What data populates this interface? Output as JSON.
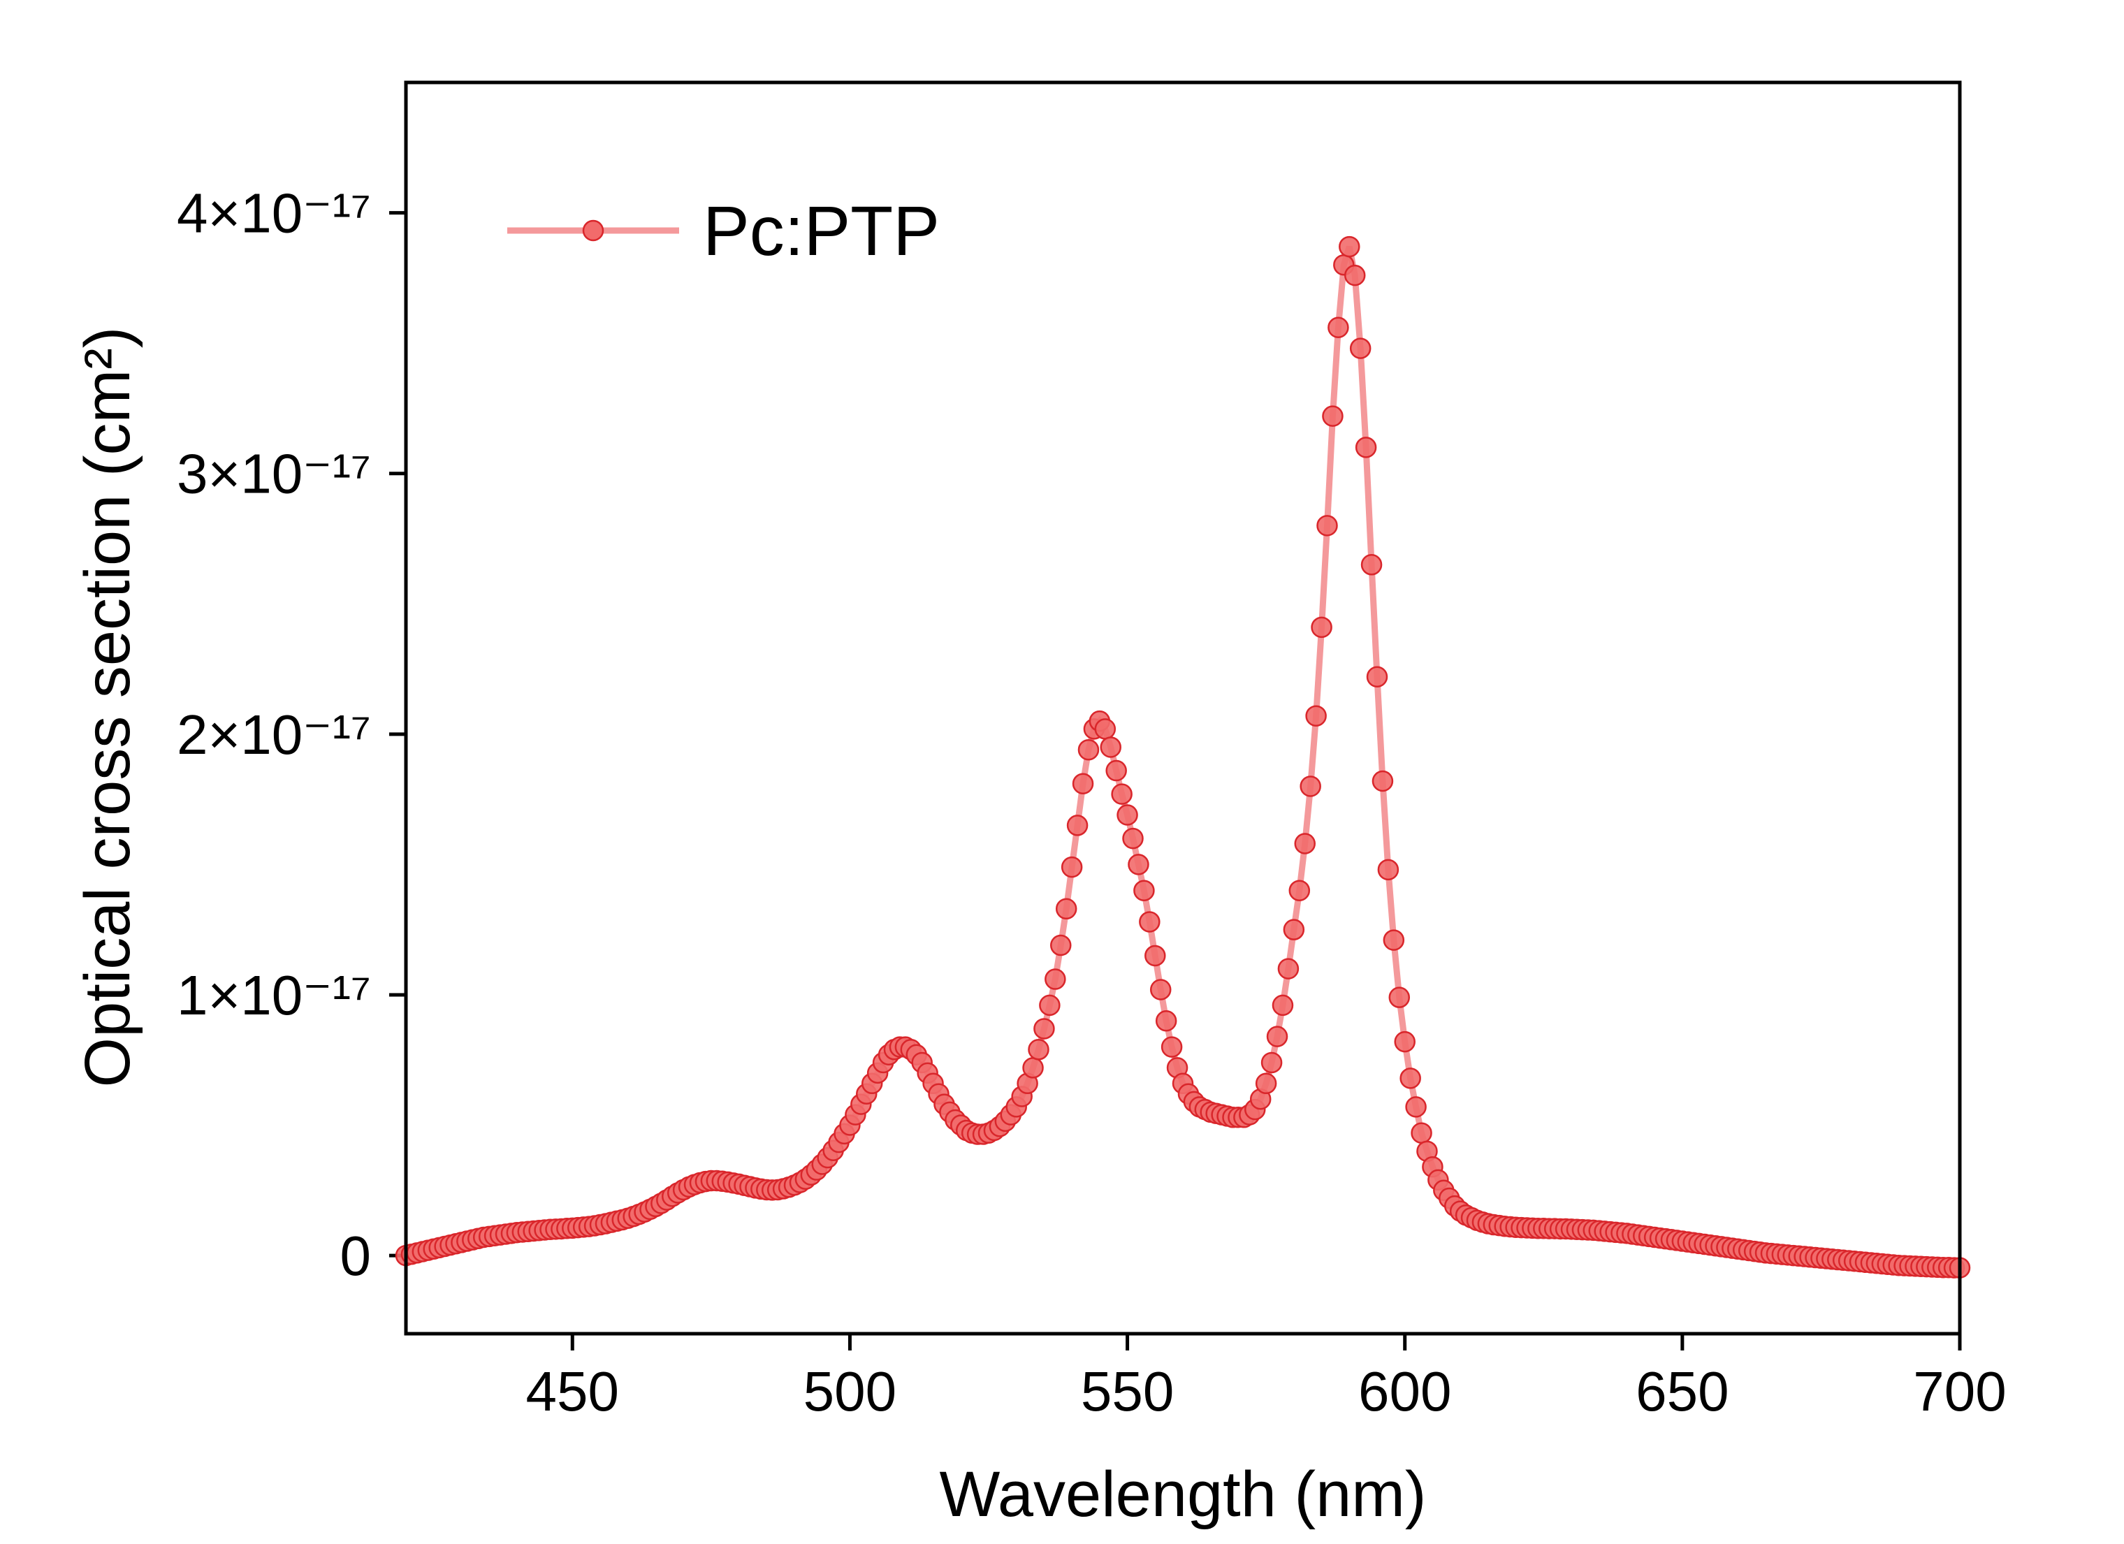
{
  "chart_data": {
    "type": "line",
    "xlabel": "Wavelength (nm)",
    "ylabel": "Optical cross section (cm²)",
    "xlim": [
      420,
      700
    ],
    "xticks": [
      450,
      500,
      550,
      600,
      650,
      700
    ],
    "ylim": [
      -3e-18,
      4.5e-17
    ],
    "yticks": [
      0,
      {
        "value": 1e-17,
        "label": "1×10⁻¹⁷"
      },
      {
        "value": 2e-17,
        "label": "2×10⁻¹⁷"
      },
      {
        "value": 3e-17,
        "label": "3×10⁻¹⁷"
      },
      {
        "value": 4e-17,
        "label": "4×10⁻¹⁷"
      }
    ],
    "legend": "upper left",
    "x": [
      420,
      421,
      422,
      423,
      424,
      425,
      426,
      427,
      428,
      429,
      430,
      431,
      432,
      433,
      434,
      435,
      436,
      437,
      438,
      439,
      440,
      441,
      442,
      443,
      444,
      445,
      446,
      447,
      448,
      449,
      450,
      451,
      452,
      453,
      454,
      455,
      456,
      457,
      458,
      459,
      460,
      461,
      462,
      463,
      464,
      465,
      466,
      467,
      468,
      469,
      470,
      471,
      472,
      473,
      474,
      475,
      476,
      477,
      478,
      479,
      480,
      481,
      482,
      483,
      484,
      485,
      486,
      487,
      488,
      489,
      490,
      491,
      492,
      493,
      494,
      495,
      496,
      497,
      498,
      499,
      500,
      501,
      502,
      503,
      504,
      505,
      506,
      507,
      508,
      509,
      510,
      511,
      512,
      513,
      514,
      515,
      516,
      517,
      518,
      519,
      520,
      521,
      522,
      523,
      524,
      525,
      526,
      527,
      528,
      529,
      530,
      531,
      532,
      533,
      534,
      535,
      536,
      537,
      538,
      539,
      540,
      541,
      542,
      543,
      544,
      545,
      546,
      547,
      548,
      549,
      550,
      551,
      552,
      553,
      554,
      555,
      556,
      557,
      558,
      559,
      560,
      561,
      562,
      563,
      564,
      565,
      566,
      567,
      568,
      569,
      570,
      571,
      572,
      573,
      574,
      575,
      576,
      577,
      578,
      579,
      580,
      581,
      582,
      583,
      584,
      585,
      586,
      587,
      588,
      589,
      590,
      591,
      592,
      593,
      594,
      595,
      596,
      597,
      598,
      599,
      600,
      601,
      602,
      603,
      604,
      605,
      606,
      607,
      608,
      609,
      610,
      611,
      612,
      613,
      614,
      615,
      616,
      617,
      618,
      619,
      620,
      621,
      622,
      623,
      624,
      625,
      626,
      627,
      628,
      629,
      630,
      631,
      632,
      633,
      634,
      635,
      636,
      637,
      638,
      639,
      640,
      641,
      642,
      643,
      644,
      645,
      646,
      647,
      648,
      649,
      650,
      651,
      652,
      653,
      654,
      655,
      656,
      657,
      658,
      659,
      660,
      661,
      662,
      663,
      664,
      665,
      666,
      667,
      668,
      669,
      670,
      671,
      672,
      673,
      674,
      675,
      676,
      677,
      678,
      679,
      680,
      681,
      682,
      683,
      684,
      685,
      686,
      687,
      688,
      689,
      690,
      691,
      692,
      693,
      694,
      695,
      696,
      697,
      698,
      699,
      700
    ],
    "series": [
      {
        "name": "Pc:PTP",
        "color": "#f4999b",
        "marker_color": "#f26b6b",
        "marker_edge": "#d9262b",
        "values": [
          0,
          5e-20,
          1e-19,
          1.5e-19,
          2e-19,
          2.5e-19,
          3e-19,
          3.5e-19,
          4e-19,
          4.5e-19,
          5e-19,
          5.5e-19,
          6e-19,
          6.5e-19,
          7e-19,
          7.3e-19,
          7.6e-19,
          7.9e-19,
          8.2e-19,
          8.5e-19,
          8.8e-19,
          9e-19,
          9.2e-19,
          9.4e-19,
          9.6e-19,
          9.8e-19,
          1e-18,
          1.01e-18,
          1.02e-18,
          1.04e-18,
          1.05e-18,
          1.07e-18,
          1.09e-18,
          1.11e-18,
          1.14e-18,
          1.18e-18,
          1.22e-18,
          1.27e-18,
          1.32e-18,
          1.37e-18,
          1.43e-18,
          1.5e-18,
          1.58e-18,
          1.67e-18,
          1.77e-18,
          1.88e-18,
          2e-18,
          2.13e-18,
          2.27e-18,
          2.4e-18,
          2.52e-18,
          2.63e-18,
          2.72e-18,
          2.79e-18,
          2.84e-18,
          2.87e-18,
          2.87e-18,
          2.85e-18,
          2.82e-18,
          2.78e-18,
          2.74e-18,
          2.69e-18,
          2.64e-18,
          2.59e-18,
          2.55e-18,
          2.52e-18,
          2.51e-18,
          2.52e-18,
          2.56e-18,
          2.62e-18,
          2.7e-18,
          2.8e-18,
          2.93e-18,
          3.09e-18,
          3.28e-18,
          3.5e-18,
          3.75e-18,
          4.03e-18,
          4.34e-18,
          4.67e-18,
          5e-18,
          5.4e-18,
          5.8e-18,
          6.2e-18,
          6.6e-18,
          7e-18,
          7.4e-18,
          7.7e-18,
          7.9e-18,
          8e-18,
          8e-18,
          7.9e-18,
          7.7e-18,
          7.4e-18,
          7e-18,
          6.6e-18,
          6.2e-18,
          5.8e-18,
          5.5e-18,
          5.2e-18,
          5e-18,
          4.8e-18,
          4.7e-18,
          4.65e-18,
          4.65e-18,
          4.7e-18,
          4.8e-18,
          4.95e-18,
          5.15e-18,
          5.4e-18,
          5.7e-18,
          6.1e-18,
          6.6e-18,
          7.2e-18,
          7.9e-18,
          8.7e-18,
          9.6e-18,
          1.06e-17,
          1.19e-17,
          1.33e-17,
          1.49e-17,
          1.65e-17,
          1.81e-17,
          1.94e-17,
          2.02e-17,
          2.05e-17,
          2.02e-17,
          1.95e-17,
          1.86e-17,
          1.77e-17,
          1.69e-17,
          1.6e-17,
          1.5e-17,
          1.4e-17,
          1.28e-17,
          1.15e-17,
          1.02e-17,
          9e-18,
          8e-18,
          7.2e-18,
          6.6e-18,
          6.2e-18,
          5.9e-18,
          5.7e-18,
          5.6e-18,
          5.5e-18,
          5.45e-18,
          5.4e-18,
          5.35e-18,
          5.3e-18,
          5.3e-18,
          5.3e-18,
          5.4e-18,
          5.6e-18,
          6e-18,
          6.6e-18,
          7.4e-18,
          8.4e-18,
          9.6e-18,
          1.1e-17,
          1.25e-17,
          1.4e-17,
          1.58e-17,
          1.8e-17,
          2.07e-17,
          2.41e-17,
          2.8e-17,
          3.22e-17,
          3.56e-17,
          3.8e-17,
          3.87e-17,
          3.76e-17,
          3.48e-17,
          3.1e-17,
          2.65e-17,
          2.22e-17,
          1.82e-17,
          1.48e-17,
          1.21e-17,
          9.9e-18,
          8.2e-18,
          6.8e-18,
          5.7e-18,
          4.7e-18,
          4e-18,
          3.4e-18,
          2.9e-18,
          2.5e-18,
          2.2e-18,
          1.9e-18,
          1.7e-18,
          1.55e-18,
          1.45e-18,
          1.35e-18,
          1.28e-18,
          1.22e-18,
          1.18e-18,
          1.15e-18,
          1.12e-18,
          1.1e-18,
          1.08e-18,
          1.07e-18,
          1.06e-18,
          1.05e-18,
          1.04e-18,
          1.04e-18,
          1.03e-18,
          1.03e-18,
          1.02e-18,
          1.02e-18,
          1.01e-18,
          1e-18,
          9.9e-19,
          9.8e-19,
          9.7e-19,
          9.5e-19,
          9.3e-19,
          9.1e-19,
          8.9e-19,
          8.7e-19,
          8.5e-19,
          8.2e-19,
          7.9e-19,
          7.6e-19,
          7.3e-19,
          7e-19,
          6.7e-19,
          6.4e-19,
          6.1e-19,
          5.8e-19,
          5.5e-19,
          5.2e-19,
          4.9e-19,
          4.6e-19,
          4.3e-19,
          4e-19,
          3.7e-19,
          3.4e-19,
          3.1e-19,
          2.8e-19,
          2.5e-19,
          2.2e-19,
          1.9e-19,
          1.6e-19,
          1.3e-19,
          1e-19,
          8e-20,
          6e-20,
          4e-20,
          2e-20,
          0,
          -2e-20,
          -4e-20,
          -6e-20,
          -8e-20,
          -1e-19,
          -1.2e-19,
          -1.4e-19,
          -1.6e-19,
          -1.8e-19,
          -2e-19,
          -2.2e-19,
          -2.4e-19,
          -2.6e-19,
          -2.8e-19,
          -3e-19,
          -3.2e-19,
          -3.4e-19,
          -3.6e-19,
          -3.8e-19,
          -3.9e-19,
          -4e-19,
          -4.1e-19,
          -4.2e-19,
          -4.3e-19,
          -4.4e-19,
          -4.5e-19,
          -4.6e-19,
          -4.6e-19,
          -4.7e-19,
          -4.7e-19
        ]
      }
    ]
  }
}
